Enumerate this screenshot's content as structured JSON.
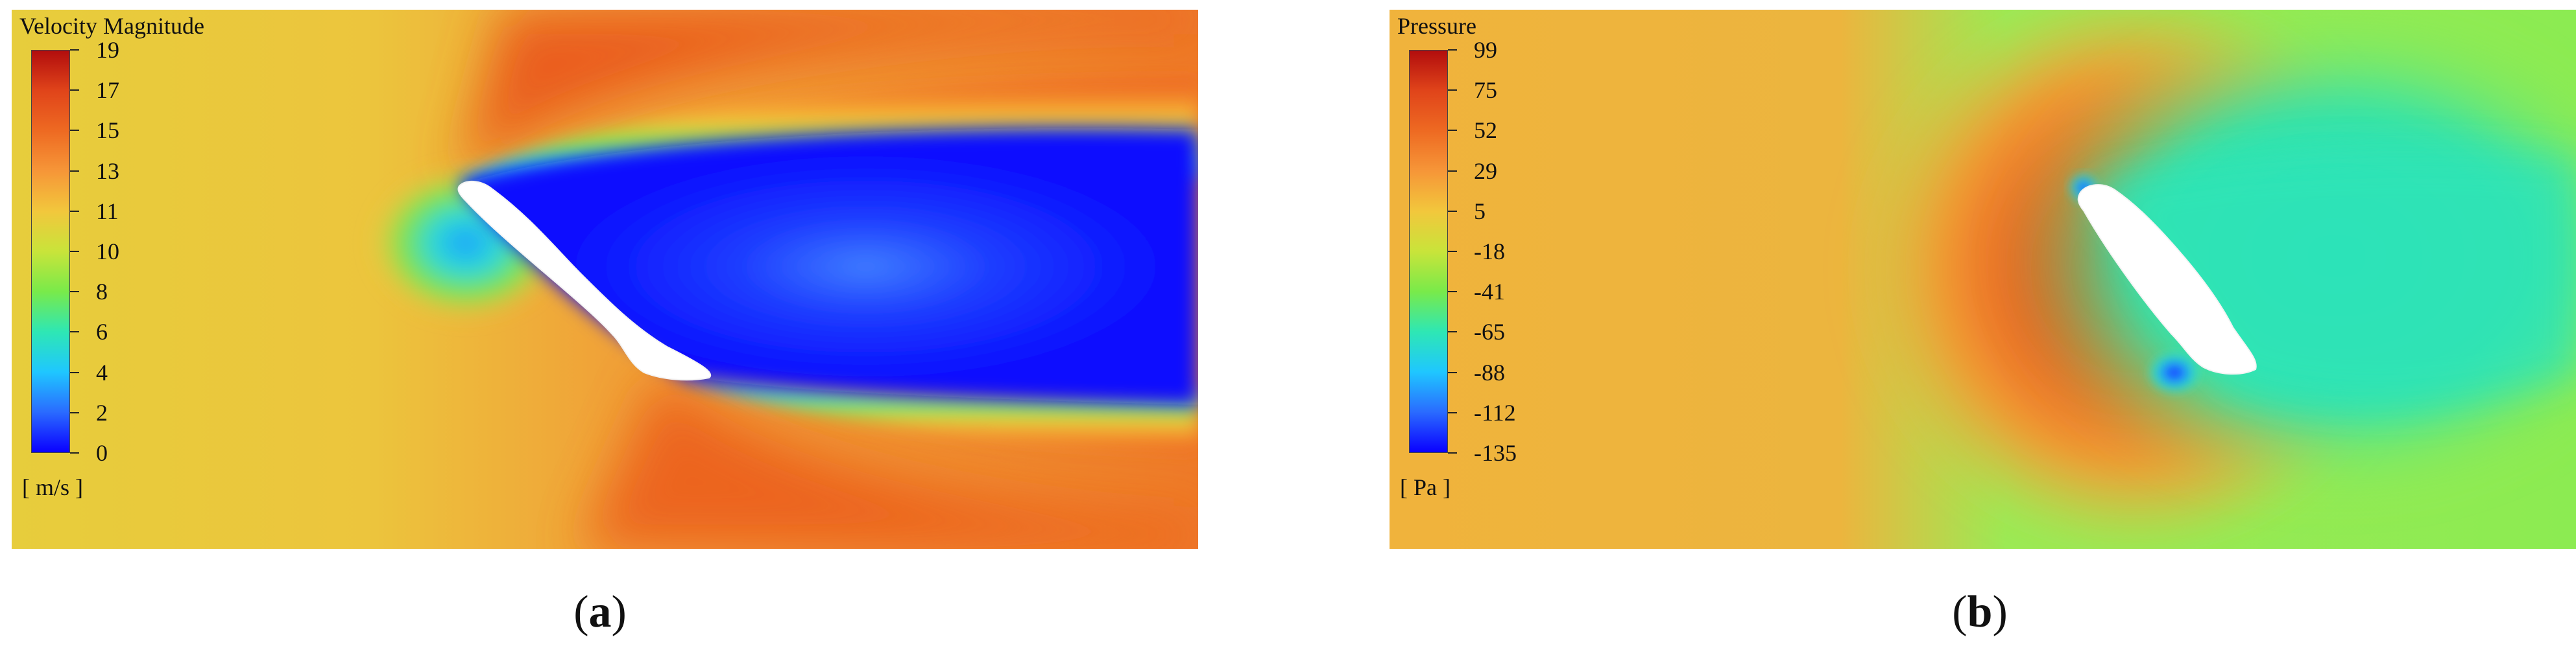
{
  "panels": {
    "a": {
      "legend_title": "Velocity Magnitude",
      "ticks": [
        "19",
        "17",
        "15",
        "13",
        "11",
        "10",
        "8",
        "6",
        "4",
        "2",
        "0"
      ],
      "unit": "[ m/s ]",
      "caption_open": "(",
      "caption_letter": "a",
      "caption_close": ")"
    },
    "b": {
      "legend_title": "Pressure",
      "ticks": [
        "99",
        "75",
        "52",
        "29",
        "5",
        "-18",
        "-41",
        "-65",
        "-88",
        "-112",
        "-135"
      ],
      "unit": "[ Pa ]",
      "caption_open": "(",
      "caption_letter": "b",
      "caption_close": ")"
    }
  },
  "colors": {
    "colormap": [
      "#0a00ff",
      "#2a6bff",
      "#1fc7ff",
      "#2ee7b4",
      "#79ea4a",
      "#c9e43a",
      "#f2c73c",
      "#f69638",
      "#ee6a22",
      "#e0441a",
      "#b20d0d"
    ],
    "velocity_free_stream": "#e9c53b",
    "velocity_fast": "#ec5a1e",
    "velocity_wake": "#0c1dff",
    "pressure_high": "#d42b1a",
    "pressure_free": "#f1a83a",
    "pressure_low": "#29e2b6",
    "pressure_suction": "#0b00ff",
    "body_fill": "#ffffff"
  }
}
